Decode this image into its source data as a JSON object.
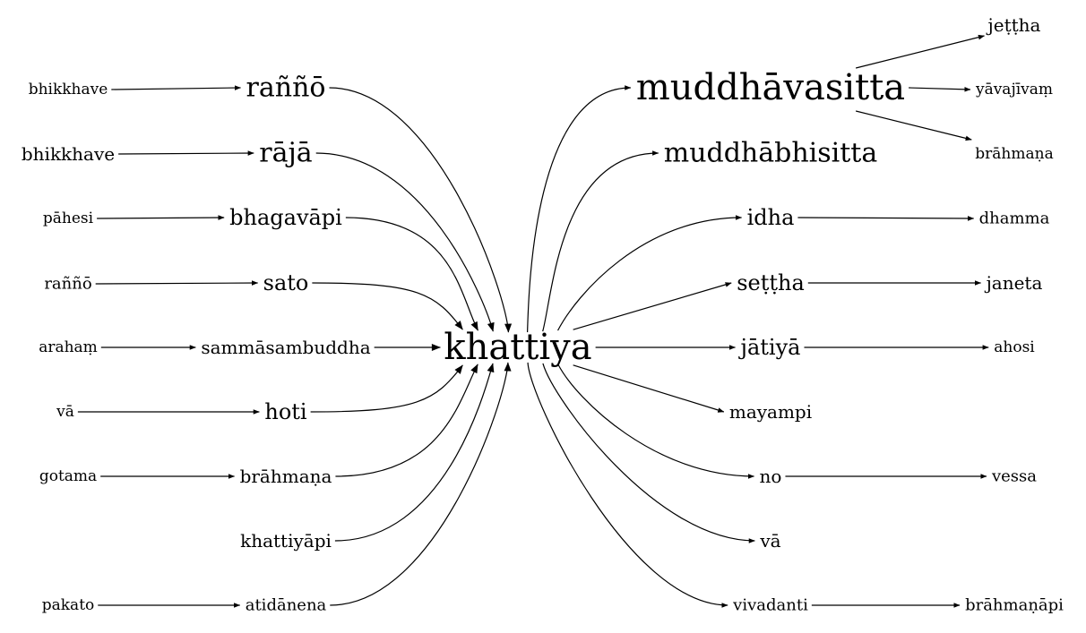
{
  "center": "khattiya",
  "left_words": [
    {
      "id": "n_ranno",
      "text": "raññō"
    },
    {
      "id": "n_raja",
      "text": "rājā"
    },
    {
      "id": "n_bhagavapi",
      "text": "bhagavāpi"
    },
    {
      "id": "n_sato",
      "text": "sato"
    },
    {
      "id": "n_samma",
      "text": "sammāsambuddha"
    },
    {
      "id": "n_hoti",
      "text": "hoti"
    },
    {
      "id": "n_brahmana_l",
      "text": "brāhmaṇa"
    },
    {
      "id": "n_khattiyapi",
      "text": "khattiyāpi"
    },
    {
      "id": "n_atidanena",
      "text": "atidānena"
    }
  ],
  "left_sources": [
    {
      "id": "s_bhikkhave1",
      "text": "bhikkhave"
    },
    {
      "id": "s_bhikkhave2",
      "text": "bhikkhave"
    },
    {
      "id": "s_pahesi",
      "text": "pāhesi"
    },
    {
      "id": "s_ranno",
      "text": "raññō"
    },
    {
      "id": "s_araham",
      "text": "arahaṃ"
    },
    {
      "id": "s_va",
      "text": "vā"
    },
    {
      "id": "s_gotama",
      "text": "gotama"
    },
    {
      "id": "s_pakato",
      "text": "pakato"
    }
  ],
  "right_words": [
    {
      "id": "r_muddhavasitta",
      "text": "muddhāvasitta"
    },
    {
      "id": "r_muddhabhisitta",
      "text": "muddhābhisitta"
    },
    {
      "id": "r_idha",
      "text": "idha"
    },
    {
      "id": "r_settha",
      "text": "seṭṭha"
    },
    {
      "id": "r_jatiya",
      "text": "jātiyā"
    },
    {
      "id": "r_mayampi",
      "text": "mayampi"
    },
    {
      "id": "r_no",
      "text": "no"
    },
    {
      "id": "r_va",
      "text": "vā"
    },
    {
      "id": "r_vivadanti",
      "text": "vivadanti"
    }
  ],
  "right_targets": [
    {
      "id": "t_jettha",
      "text": "jeṭṭha"
    },
    {
      "id": "t_yavajivam",
      "text": "yāvajīvaṃ"
    },
    {
      "id": "t_brahmana",
      "text": "brāhmaṇa"
    },
    {
      "id": "t_dhamma",
      "text": "dhamma"
    },
    {
      "id": "t_janeta",
      "text": "janeta"
    },
    {
      "id": "t_ahosi",
      "text": "ahosi"
    },
    {
      "id": "t_vessa",
      "text": "vessa"
    },
    {
      "id": "t_brahmanapi",
      "text": "brāhmaṇāpi"
    }
  ],
  "edges": [
    [
      "s_bhikkhave1",
      "n_ranno"
    ],
    [
      "s_bhikkhave2",
      "n_raja"
    ],
    [
      "s_pahesi",
      "n_bhagavapi"
    ],
    [
      "s_ranno",
      "n_sato"
    ],
    [
      "s_araham",
      "n_samma"
    ],
    [
      "s_va",
      "n_hoti"
    ],
    [
      "s_gotama",
      "n_brahmana_l"
    ],
    [
      "s_pakato",
      "n_atidanena"
    ],
    [
      "n_ranno",
      "center"
    ],
    [
      "n_raja",
      "center"
    ],
    [
      "n_bhagavapi",
      "center"
    ],
    [
      "n_sato",
      "center"
    ],
    [
      "n_samma",
      "center"
    ],
    [
      "n_hoti",
      "center"
    ],
    [
      "n_brahmana_l",
      "center"
    ],
    [
      "n_khattiyapi",
      "center"
    ],
    [
      "n_atidanena",
      "center"
    ],
    [
      "center",
      "r_muddhavasitta"
    ],
    [
      "center",
      "r_muddhabhisitta"
    ],
    [
      "center",
      "r_idha"
    ],
    [
      "center",
      "r_settha"
    ],
    [
      "center",
      "r_jatiya"
    ],
    [
      "center",
      "r_mayampi"
    ],
    [
      "center",
      "r_no"
    ],
    [
      "center",
      "r_va"
    ],
    [
      "center",
      "r_vivadanti"
    ],
    [
      "r_muddhavasitta",
      "t_jettha"
    ],
    [
      "r_muddhavasitta",
      "t_yavajivam"
    ],
    [
      "r_muddhavasitta",
      "t_brahmana"
    ],
    [
      "r_idha",
      "t_dhamma"
    ],
    [
      "r_settha",
      "t_janeta"
    ],
    [
      "r_jatiya",
      "t_ahosi"
    ],
    [
      "r_no",
      "t_vessa"
    ],
    [
      "r_vivadanti",
      "t_brahmanapi"
    ]
  ]
}
